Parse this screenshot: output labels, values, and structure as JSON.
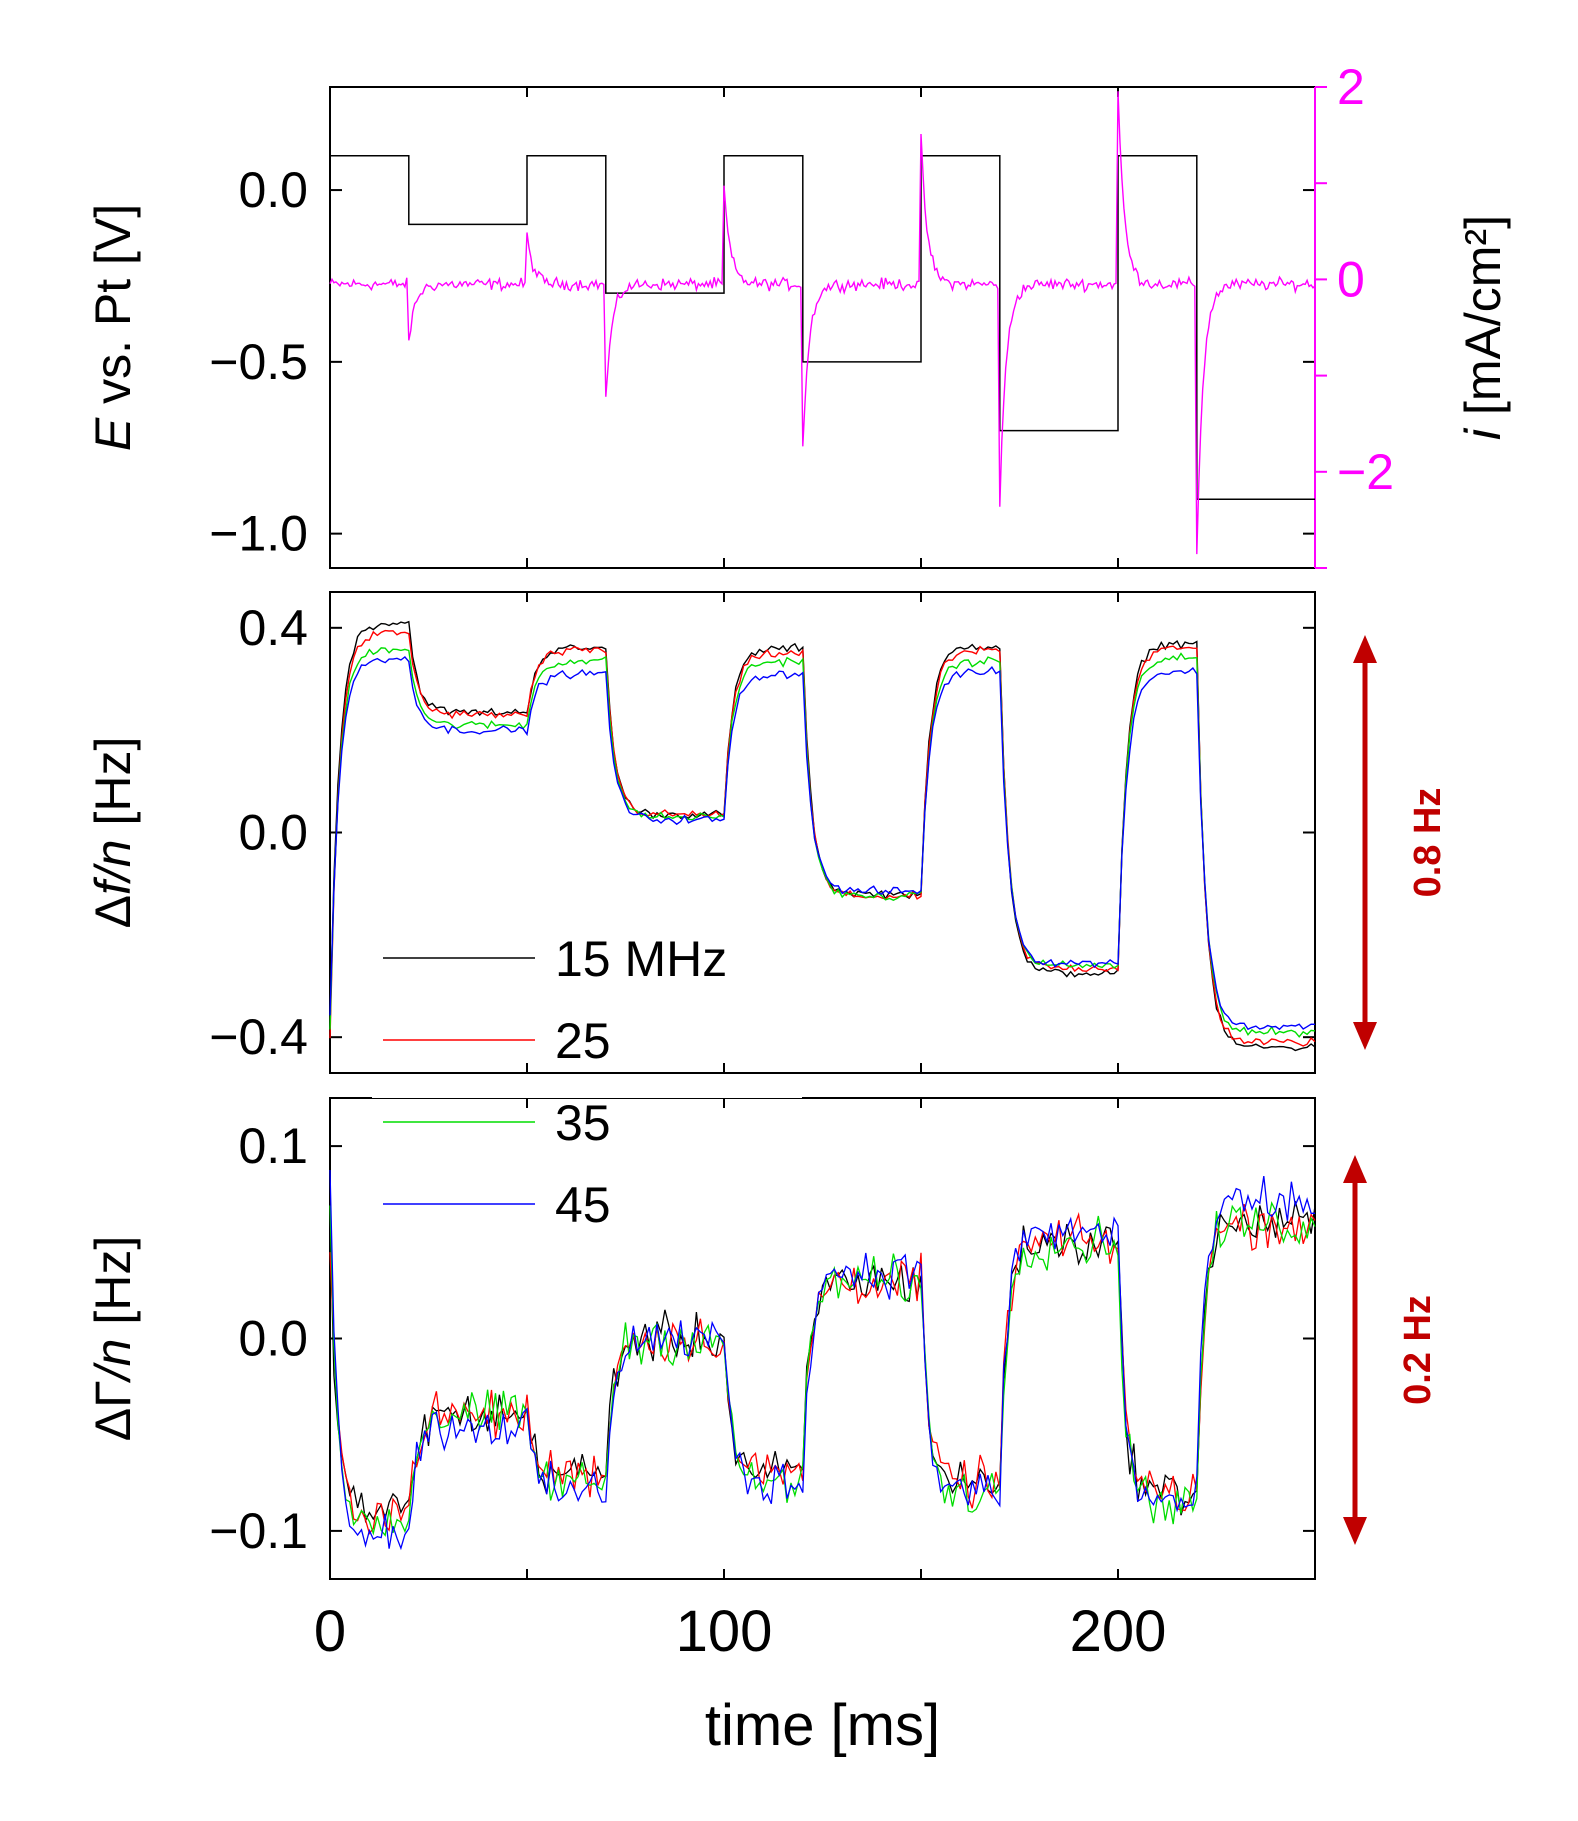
{
  "chart_data": [
    {
      "type": "line",
      "panel": "top",
      "ylabel_italic": "E",
      "ylabel_rest": " vs. Pt [V]",
      "y2label_italic": "i",
      "y2label_rest": " [mA/cm²]",
      "xlim": [
        0,
        250
      ],
      "ylim": [
        -1.1,
        0.3
      ],
      "yticks": [
        0.0,
        -0.5,
        -1.0
      ],
      "ytick_labels": [
        "0.0",
        "−0.5",
        "−1.0"
      ],
      "y2lim": [
        -3,
        2
      ],
      "y2ticks": [
        2,
        0,
        -2
      ],
      "y2tick_labels": [
        "2",
        "0",
        "−2"
      ],
      "potential_steps": [
        {
          "t0": 0,
          "t1": 20,
          "E": 0.1
        },
        {
          "t0": 20,
          "t1": 50,
          "E": -0.1
        },
        {
          "t0": 50,
          "t1": 70,
          "E": 0.1
        },
        {
          "t0": 70,
          "t1": 100,
          "E": -0.3
        },
        {
          "t0": 100,
          "t1": 120,
          "E": 0.1
        },
        {
          "t0": 120,
          "t1": 150,
          "E": -0.5
        },
        {
          "t0": 150,
          "t1": 170,
          "E": 0.1
        },
        {
          "t0": 170,
          "t1": 200,
          "E": -0.7
        },
        {
          "t0": 200,
          "t1": 220,
          "E": 0.1
        },
        {
          "t0": 220,
          "t1": 250,
          "E": -0.9
        }
      ],
      "current_spikes": [
        {
          "t": 20,
          "peak": -0.6
        },
        {
          "t": 50,
          "peak": 0.5
        },
        {
          "t": 70,
          "peak": -1.2
        },
        {
          "t": 100,
          "peak": 1.0
        },
        {
          "t": 120,
          "peak": -1.7
        },
        {
          "t": 150,
          "peak": 1.5
        },
        {
          "t": 170,
          "peak": -2.3
        },
        {
          "t": 200,
          "peak": 2.0
        },
        {
          "t": 220,
          "peak": -2.8
        }
      ],
      "current_baseline": -0.05
    },
    {
      "type": "line",
      "panel": "middle",
      "ylabel_delta": "Δ",
      "ylabel_italic": "f/n",
      "ylabel_rest": " [Hz]",
      "xlim": [
        0,
        250
      ],
      "ylim": [
        -0.47,
        0.47
      ],
      "yticks": [
        0.4,
        0.0,
        -0.4
      ],
      "ytick_labels": [
        "0.4",
        "0.0",
        "−0.4"
      ],
      "annotation": "0.8 Hz",
      "series": [
        {
          "name": "15 MHz",
          "color": "#000000",
          "levels": [
            0.41,
            0.235,
            0.36,
            0.035,
            0.36,
            -0.12,
            0.365,
            -0.275,
            0.37,
            -0.42
          ],
          "start": -0.38
        },
        {
          "name": "25",
          "color": "#ff0000",
          "levels": [
            0.39,
            0.23,
            0.355,
            0.035,
            0.35,
            -0.125,
            0.355,
            -0.265,
            0.36,
            -0.41
          ],
          "start": -0.4
        },
        {
          "name": "35",
          "color": "#00dd00",
          "levels": [
            0.36,
            0.21,
            0.335,
            0.03,
            0.335,
            -0.125,
            0.335,
            -0.26,
            0.34,
            -0.39
          ],
          "start": -0.38
        },
        {
          "name": "45",
          "color": "#0000ff",
          "levels": [
            0.34,
            0.2,
            0.31,
            0.025,
            0.31,
            -0.115,
            0.315,
            -0.255,
            0.315,
            -0.38
          ],
          "start": -0.36
        }
      ]
    },
    {
      "type": "line",
      "panel": "bottom",
      "ylabel_delta": "ΔΓ",
      "ylabel_italic": "/n",
      "ylabel_rest": "  [Hz]",
      "xlim": [
        0,
        250
      ],
      "ylim": [
        -0.125,
        0.125
      ],
      "yticks": [
        0.1,
        0.0,
        -0.1
      ],
      "ytick_labels": [
        "0.1",
        "0.0",
        "−0.1"
      ],
      "xticks": [
        0,
        100,
        200
      ],
      "xtick_labels": [
        "0",
        "100",
        "200"
      ],
      "xlabel": "time [ms]",
      "annotation": "0.2 Hz",
      "series": [
        {
          "name": "15 MHz",
          "color": "#000000",
          "levels": [
            -0.09,
            -0.04,
            -0.07,
            0.0,
            -0.07,
            0.03,
            -0.075,
            0.05,
            -0.08,
            0.06
          ],
          "start": 0.06
        },
        {
          "name": "25",
          "color": "#ff0000",
          "levels": [
            -0.09,
            -0.04,
            -0.07,
            0.0,
            -0.07,
            0.03,
            -0.075,
            0.05,
            -0.08,
            0.06
          ],
          "start": 0.05
        },
        {
          "name": "35",
          "color": "#00dd00",
          "levels": [
            -0.095,
            -0.04,
            -0.075,
            0.0,
            -0.075,
            0.03,
            -0.08,
            0.05,
            -0.085,
            0.06
          ],
          "start": 0.055
        },
        {
          "name": "45",
          "color": "#0000ff",
          "levels": [
            -0.1,
            -0.045,
            -0.08,
            0.0,
            -0.075,
            0.035,
            -0.08,
            0.055,
            -0.085,
            0.07
          ],
          "start": 0.08
        }
      ]
    }
  ],
  "legend": {
    "entries": [
      {
        "label": "15 MHz",
        "color": "#000000"
      },
      {
        "label": "25",
        "color": "#ff0000"
      },
      {
        "label": "35",
        "color": "#00dd00"
      },
      {
        "label": "45",
        "color": "#0000ff"
      }
    ]
  },
  "colors": {
    "current": "#ff00ff",
    "annotation": "#c00000",
    "potential": "#000000"
  }
}
